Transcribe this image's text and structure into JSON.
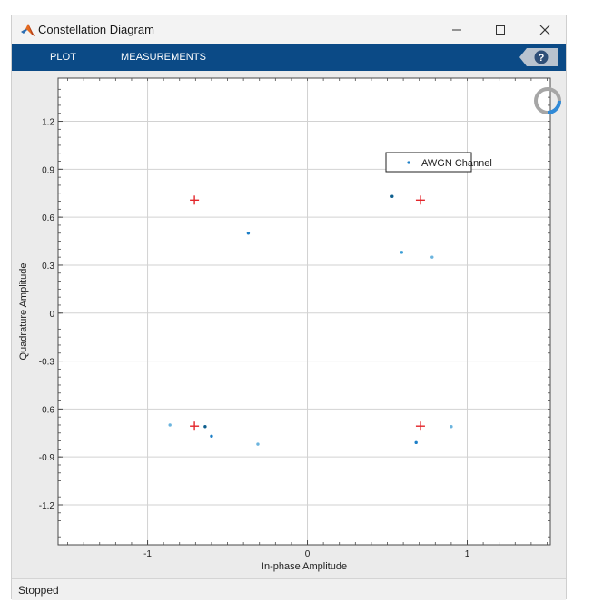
{
  "window": {
    "title": "Constellation Diagram",
    "controls": [
      "minimize",
      "maximize",
      "close"
    ]
  },
  "toolstrip": {
    "tabs": [
      "PLOT",
      "MEASUREMENTS"
    ],
    "help_icon": "help-icon",
    "background_color": "#0b4a86"
  },
  "status": {
    "text": "Stopped"
  },
  "chart_data": {
    "type": "scatter",
    "title": "",
    "xlabel": "In-phase Amplitude",
    "ylabel": "Quadrature Amplitude",
    "xlim": [
      -1.56,
      1.52
    ],
    "ylim": [
      -1.45,
      1.47
    ],
    "xticks": [
      -1,
      0,
      1
    ],
    "xtick_labels": [
      "-1",
      "0",
      "1"
    ],
    "yticks": [
      1.2,
      0.9,
      0.6,
      0.3,
      0,
      -0.3,
      -0.6,
      -0.9,
      -1.2
    ],
    "ytick_labels": [
      "1.2",
      "0.9",
      "0.6",
      "0.3",
      "0",
      "-0.3",
      "-0.6",
      "-0.9",
      "-1.2"
    ],
    "grid": true,
    "legend": {
      "entries": [
        "AWGN Channel"
      ],
      "placement": "top-right"
    },
    "series": [
      {
        "name": "AWGN Channel",
        "marker": "dot",
        "points": [
          {
            "x": -0.37,
            "y": 0.5,
            "color": "#1d7fc7"
          },
          {
            "x": 0.53,
            "y": 0.73,
            "color": "#0e5f8e"
          },
          {
            "x": 0.59,
            "y": 0.38,
            "color": "#3b9ed6"
          },
          {
            "x": 0.78,
            "y": 0.35,
            "color": "#6bb4de"
          },
          {
            "x": -0.86,
            "y": -0.7,
            "color": "#6bb4de"
          },
          {
            "x": -0.64,
            "y": -0.71,
            "color": "#0e5f8e"
          },
          {
            "x": -0.6,
            "y": -0.77,
            "color": "#1d7fc7"
          },
          {
            "x": -0.31,
            "y": -0.82,
            "color": "#6bb4de"
          },
          {
            "x": 0.68,
            "y": -0.81,
            "color": "#1d7fc7"
          },
          {
            "x": 0.9,
            "y": -0.71,
            "color": "#6bb4de"
          }
        ]
      },
      {
        "name": "",
        "marker": "plus",
        "color": "#e3262b",
        "points": [
          {
            "x": -0.707,
            "y": 0.707
          },
          {
            "x": 0.707,
            "y": 0.707
          },
          {
            "x": -0.707,
            "y": -0.707
          },
          {
            "x": 0.707,
            "y": -0.707
          }
        ]
      }
    ],
    "busy_indicator_colors": [
      "#a6a6a6",
      "#2f8ad8"
    ]
  }
}
